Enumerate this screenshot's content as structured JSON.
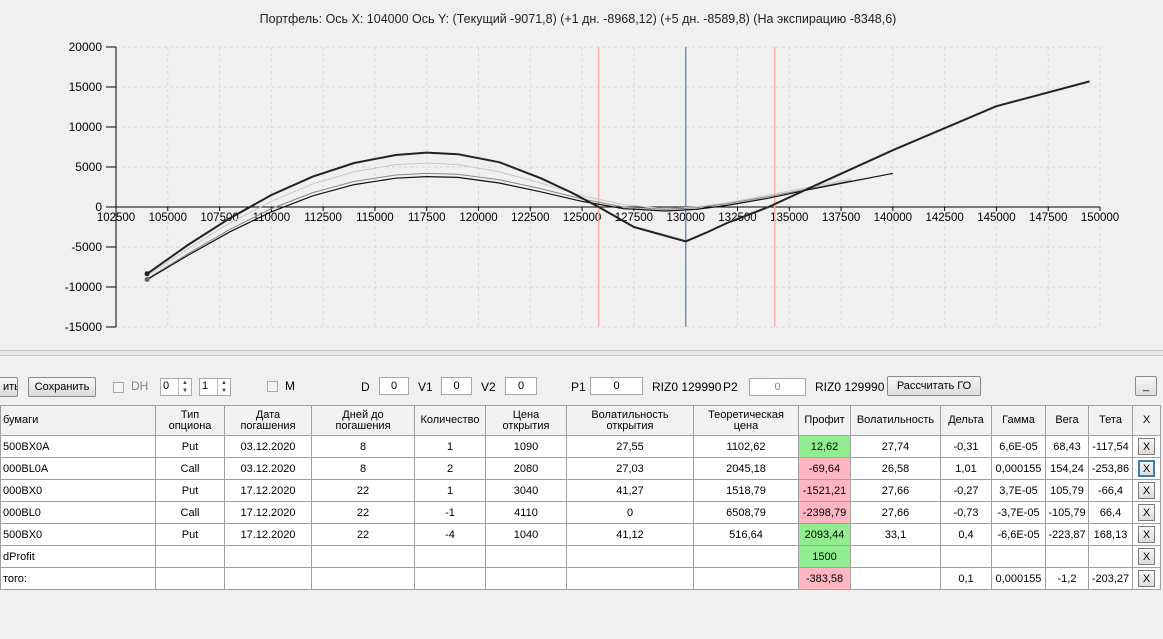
{
  "chart_data": {
    "type": "line",
    "title": "Портфель: Ось X: 104000 Ось Y:  (Текущий -9071,8)  (+1 дн. -8968,12)  (+5 дн. -8589,8)  (На экспирацию -8348,6)",
    "xlabel": "",
    "ylabel": "",
    "xlim": [
      102500,
      150000
    ],
    "ylim": [
      -15000,
      20000
    ],
    "x_ticks": [
      102500,
      105000,
      107500,
      110000,
      112500,
      115000,
      117500,
      120000,
      122500,
      125000,
      127500,
      130000,
      132500,
      135000,
      137500,
      140000,
      142500,
      145000,
      147500,
      150000
    ],
    "y_ticks": [
      20000,
      15000,
      10000,
      5000,
      0,
      -5000,
      -10000,
      -15000
    ],
    "grid": true,
    "vertical_lines": [
      {
        "x": 125800,
        "color": "#ffb0b0"
      },
      {
        "x": 130000,
        "color": "#7090b0"
      },
      {
        "x": 134300,
        "color": "#ffb0b0"
      }
    ],
    "series": [
      {
        "color": "#222222",
        "width": 2,
        "x": [
          104000,
          106000,
          108000,
          110000,
          112000,
          114000,
          116000,
          117500,
          119000,
          121000,
          123000,
          124500,
          125800,
          127500,
          130000,
          131000,
          132000,
          134000,
          136000,
          140000,
          145000,
          149500
        ],
        "y": [
          -8350,
          -4700,
          -1400,
          1500,
          3800,
          5500,
          6500,
          6800,
          6600,
          5600,
          3600,
          1800,
          0,
          -2500,
          -4300,
          -3200,
          -2000,
          0,
          2400,
          7100,
          12600,
          15700
        ]
      },
      {
        "color": "#111111",
        "width": 1.2,
        "x": [
          104000,
          106000,
          108000,
          110000,
          112000,
          114000,
          116000,
          117500,
          119000,
          121000,
          123000,
          125000,
          127000,
          129000,
          130500,
          132000,
          134000,
          136000,
          138000,
          140000
        ],
        "y": [
          -9070,
          -6000,
          -3100,
          -600,
          1400,
          2800,
          3600,
          3800,
          3700,
          3000,
          1900,
          700,
          -200,
          -500,
          -300,
          200,
          1100,
          2200,
          3200,
          4200
        ]
      },
      {
        "color": "#888888",
        "width": 1,
        "x": [
          104000,
          106000,
          108000,
          110000,
          112000,
          114000,
          116000,
          117500,
          119000,
          121000,
          123000,
          125000,
          127000,
          129000,
          130500,
          132000,
          134000,
          136000,
          138000
        ],
        "y": [
          -8970,
          -5800,
          -2800,
          -200,
          1800,
          3200,
          4000,
          4200,
          4100,
          3400,
          2300,
          1000,
          0,
          -300,
          -100,
          400,
          1300,
          2300,
          3300
        ]
      },
      {
        "color": "#c8c8c8",
        "width": 1,
        "x": [
          104000,
          106000,
          108000,
          110000,
          112000,
          114000,
          116000,
          117500,
          119000,
          121000,
          123000,
          125000,
          127000,
          129000,
          130500,
          132000,
          134000,
          136000,
          138000
        ],
        "y": [
          -8590,
          -5200,
          -2000,
          700,
          2900,
          4400,
          5300,
          5500,
          5300,
          4400,
          3000,
          1400,
          300,
          -200,
          0,
          500,
          1500,
          2500,
          3500
        ]
      }
    ]
  },
  "toolbar": {
    "cut_label": "ить",
    "save_label": "Сохранить",
    "dh_label": "DH",
    "spin1_value": "0",
    "spin2_value": "1",
    "m_label": "M",
    "d_label": "D",
    "d_value": "0",
    "v1_label": "V1",
    "v1_value": "0",
    "v2_label": "V2",
    "v2_value": "0",
    "p1_label": "P1",
    "p1_value": "0",
    "instr1": "RIZ0 129990",
    "p2_label": "P2",
    "p2_value": "0",
    "instr2": "RIZ0 129990",
    "calc_go_label": "Рассчитать ГО",
    "minimize_label": "_"
  },
  "table": {
    "columns": [
      "бумаги",
      "Тип\nопциона",
      "Дата\nпогашения",
      "Дней до\nпогашения",
      "Количество",
      "Цена\nоткрытия",
      "Волатильность\nоткрытия",
      "Теоретическая\nцена",
      "Профит",
      "Волатильность",
      "Дельта",
      "Гамма",
      "Вега",
      "Тета",
      "X"
    ],
    "rows": [
      [
        "500BX0A",
        "Put",
        "03.12.2020",
        "8",
        "1",
        "1090",
        "27,55",
        "1102,62",
        "12,62",
        "27,74",
        "-0,31",
        "6,6E-05",
        "68,43",
        "-117,54",
        "X"
      ],
      [
        "000BL0A",
        "Call",
        "03.12.2020",
        "8",
        "2",
        "2080",
        "27,03",
        "2045,18",
        "-69,64",
        "26,58",
        "1,01",
        "0,000155",
        "154,24",
        "-253,86",
        "X"
      ],
      [
        "000BX0",
        "Put",
        "17.12.2020",
        "22",
        "1",
        "3040",
        "41,27",
        "1518,79",
        "-1521,21",
        "27,66",
        "-0,27",
        "3,7E-05",
        "105,79",
        "-66,4",
        "X"
      ],
      [
        "000BL0",
        "Call",
        "17.12.2020",
        "22",
        "-1",
        "4110",
        "0",
        "6508,79",
        "-2398,79",
        "27,66",
        "-0,73",
        "-3,7E-05",
        "-105,79",
        "66,4",
        "X"
      ],
      [
        "500BX0",
        "Put",
        "17.12.2020",
        "22",
        "-4",
        "1040",
        "41,12",
        "516,64",
        "2093,44",
        "33,1",
        "0,4",
        "-6,6E-05",
        "-223,87",
        "168,13",
        "X"
      ],
      [
        "dProfit",
        "",
        "",
        "",
        "",
        "",
        "",
        "",
        "1500",
        "",
        "",
        "",
        "",
        "",
        "X"
      ],
      [
        "того:",
        "",
        "",
        "",
        "",
        "",
        "",
        "",
        "-383,58",
        "",
        "0,1",
        "0,000155",
        "-1,2",
        "-203,27",
        "X"
      ]
    ],
    "profit_colors": [
      "#90ee90",
      "#ffb6c1",
      "#ffb6c1",
      "#ffb6c1",
      "#90ee90",
      "#90ee90",
      "#ffb6c1"
    ]
  }
}
